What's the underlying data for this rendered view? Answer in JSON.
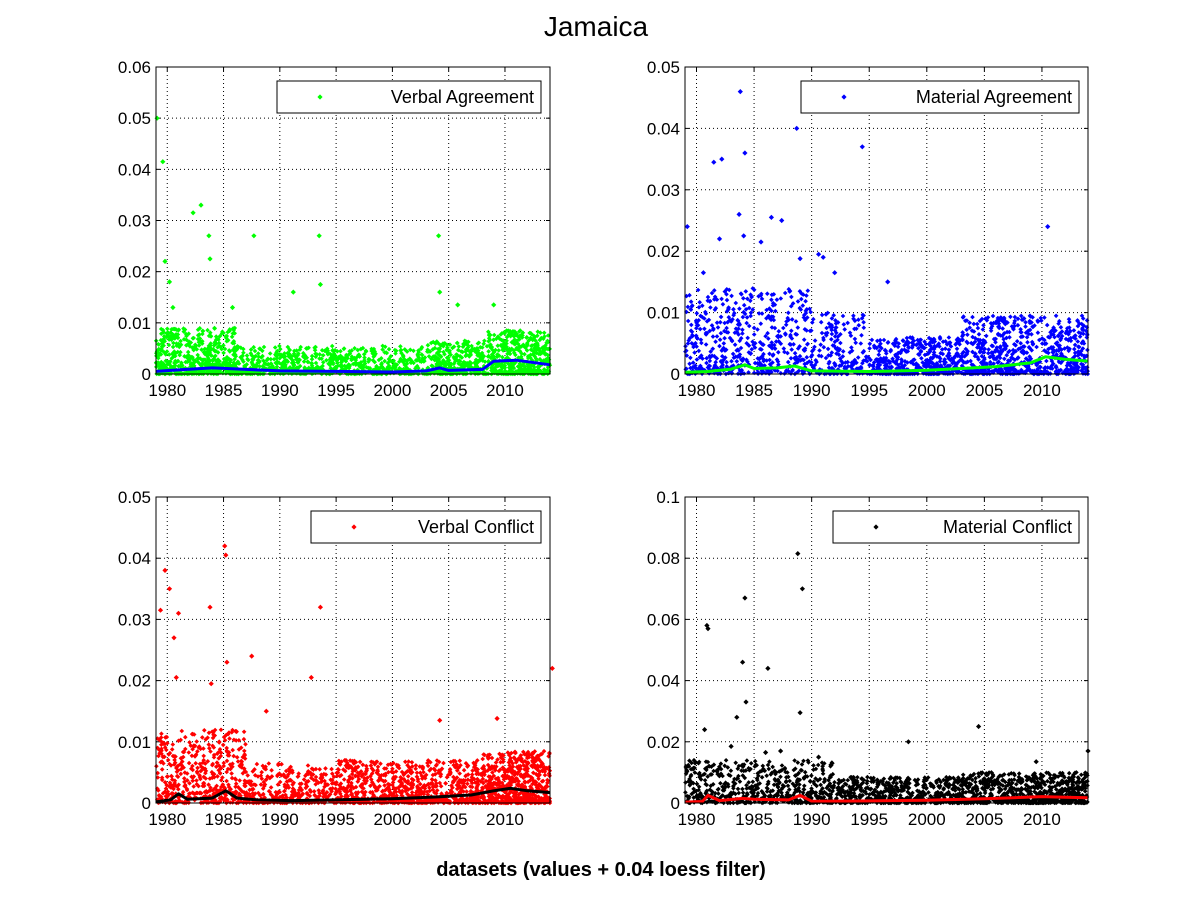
{
  "figure": {
    "title": "Jamaica",
    "xlabel": "datasets (values + 0.04 loess filter)"
  },
  "chart_data": [
    {
      "type": "scatter",
      "legend": "Verbal Agreement",
      "legend_placement": "top-right",
      "point_color": "#00ff00",
      "trend_color": "#0000ff",
      "grid": true,
      "xlim": [
        1979,
        2014
      ],
      "ylim": [
        0,
        0.06
      ],
      "xticks": [
        "1980",
        "1985",
        "1990",
        "1995",
        "2000",
        "2005",
        "2010"
      ],
      "yticks": [
        "0",
        "0.01",
        "0.02",
        "0.03",
        "0.04",
        "0.05",
        "0.06"
      ],
      "outliers": [
        [
          1979.1,
          0.05
        ],
        [
          1979.6,
          0.0415
        ],
        [
          1979.8,
          0.022
        ],
        [
          1980.2,
          0.018
        ],
        [
          1982.3,
          0.0315
        ],
        [
          1983.0,
          0.033
        ],
        [
          1983.7,
          0.027
        ],
        [
          1983.8,
          0.0225
        ],
        [
          1987.7,
          0.027
        ],
        [
          1993.5,
          0.027
        ],
        [
          1993.6,
          0.0175
        ],
        [
          1991.2,
          0.016
        ],
        [
          2004.1,
          0.027
        ],
        [
          2004.2,
          0.016
        ],
        [
          2009.0,
          0.0135
        ],
        [
          1980.5,
          0.013
        ],
        [
          1985.8,
          0.013
        ],
        [
          2005.8,
          0.0135
        ]
      ],
      "point_bands": [
        {
          "from": 1979,
          "to": 1986,
          "max": 0.009,
          "count": 520
        },
        {
          "from": 1986,
          "to": 2003,
          "max": 0.0055,
          "count": 700
        },
        {
          "from": 2003,
          "to": 2008.5,
          "max": 0.0065,
          "count": 320
        },
        {
          "from": 2008.5,
          "to": 2014,
          "max": 0.0085,
          "count": 420
        }
      ],
      "trend": [
        [
          1979,
          0.0005
        ],
        [
          1981,
          0.0008
        ],
        [
          1984,
          0.0012
        ],
        [
          1987,
          0.0009
        ],
        [
          1990,
          0.0006
        ],
        [
          1995,
          0.0005
        ],
        [
          2000,
          0.0004
        ],
        [
          2003,
          0.0006
        ],
        [
          2004.2,
          0.0012
        ],
        [
          2005,
          0.0007
        ],
        [
          2008,
          0.0009
        ],
        [
          2009,
          0.0025
        ],
        [
          2011,
          0.0027
        ],
        [
          2012,
          0.0024
        ],
        [
          2014,
          0.0018
        ]
      ]
    },
    {
      "type": "scatter",
      "legend": "Material Agreement",
      "legend_placement": "top-right",
      "point_color": "#0000ff",
      "trend_color": "#00ff00",
      "grid": true,
      "xlim": [
        1979,
        2014
      ],
      "ylim": [
        0,
        0.05
      ],
      "xticks": [
        "1980",
        "1985",
        "1990",
        "1995",
        "2000",
        "2005",
        "2010"
      ],
      "yticks": [
        "0",
        "0.01",
        "0.02",
        "0.03",
        "0.04",
        "0.05"
      ],
      "outliers": [
        [
          1979.2,
          0.024
        ],
        [
          1981.5,
          0.0345
        ],
        [
          1982.2,
          0.035
        ],
        [
          1983.8,
          0.046
        ],
        [
          1984.2,
          0.036
        ],
        [
          1983.7,
          0.026
        ],
        [
          1986.5,
          0.0255
        ],
        [
          1987.4,
          0.025
        ],
        [
          1988.7,
          0.04
        ],
        [
          1994.4,
          0.037
        ],
        [
          1990.6,
          0.0195
        ],
        [
          1991.0,
          0.019
        ],
        [
          2010.5,
          0.024
        ],
        [
          1982.0,
          0.022
        ],
        [
          1984.1,
          0.0225
        ],
        [
          1985.6,
          0.0215
        ],
        [
          1980.6,
          0.0165
        ],
        [
          1989.0,
          0.0188
        ],
        [
          1992.0,
          0.0165
        ],
        [
          1996.6,
          0.015
        ]
      ],
      "point_bands": [
        {
          "from": 1979,
          "to": 1990,
          "max": 0.014,
          "count": 520
        },
        {
          "from": 1990,
          "to": 1995,
          "max": 0.01,
          "count": 180
        },
        {
          "from": 1995,
          "to": 2003,
          "max": 0.006,
          "count": 420
        },
        {
          "from": 2003,
          "to": 2014,
          "max": 0.0095,
          "count": 700
        }
      ],
      "trend": [
        [
          1979,
          0.0003
        ],
        [
          1981,
          0.0004
        ],
        [
          1983,
          0.0008
        ],
        [
          1984.2,
          0.0015
        ],
        [
          1985,
          0.0009
        ],
        [
          1987,
          0.001
        ],
        [
          1988.5,
          0.0013
        ],
        [
          1990,
          0.0005
        ],
        [
          1995,
          0.0004
        ],
        [
          2000,
          0.0006
        ],
        [
          2003,
          0.0009
        ],
        [
          2006,
          0.0012
        ],
        [
          2009,
          0.0018
        ],
        [
          2010.3,
          0.0028
        ],
        [
          2012,
          0.0024
        ],
        [
          2014,
          0.0021
        ]
      ]
    },
    {
      "type": "scatter",
      "legend": "Verbal Conflict",
      "legend_placement": "top-right",
      "point_color": "#ff0000",
      "trend_color": "#000000",
      "grid": true,
      "xlim": [
        1979,
        2014
      ],
      "ylim": [
        0,
        0.05
      ],
      "xticks": [
        "1980",
        "1985",
        "1990",
        "1995",
        "2000",
        "2005",
        "2010"
      ],
      "yticks": [
        "0",
        "0.01",
        "0.02",
        "0.03",
        "0.04",
        "0.05"
      ],
      "outliers": [
        [
          1979.4,
          0.0315
        ],
        [
          1979.8,
          0.038
        ],
        [
          1980.2,
          0.035
        ],
        [
          1980.6,
          0.027
        ],
        [
          1981.0,
          0.031
        ],
        [
          1983.8,
          0.032
        ],
        [
          1985.1,
          0.042
        ],
        [
          1985.2,
          0.0405
        ],
        [
          1985.3,
          0.023
        ],
        [
          1987.5,
          0.024
        ],
        [
          1993.6,
          0.032
        ],
        [
          1992.8,
          0.0205
        ],
        [
          1983.9,
          0.0195
        ],
        [
          2014.2,
          0.022
        ],
        [
          2009.3,
          0.0138
        ],
        [
          2004.2,
          0.0135
        ],
        [
          1980.8,
          0.0205
        ],
        [
          1988.8,
          0.015
        ]
      ],
      "point_bands": [
        {
          "from": 1979,
          "to": 1987,
          "max": 0.012,
          "count": 480
        },
        {
          "from": 1987,
          "to": 1995,
          "max": 0.0065,
          "count": 320
        },
        {
          "from": 1995,
          "to": 2008,
          "max": 0.007,
          "count": 780
        },
        {
          "from": 2008,
          "to": 2014,
          "max": 0.0085,
          "count": 560
        }
      ],
      "trend": [
        [
          1979,
          0.0002
        ],
        [
          1980.3,
          0.0005
        ],
        [
          1981.0,
          0.0015
        ],
        [
          1981.8,
          0.0006
        ],
        [
          1984.0,
          0.0008
        ],
        [
          1985.2,
          0.002
        ],
        [
          1986.2,
          0.0008
        ],
        [
          1988.0,
          0.0005
        ],
        [
          1991.0,
          0.0004
        ],
        [
          1995,
          0.0005
        ],
        [
          2000,
          0.0007
        ],
        [
          2004,
          0.001
        ],
        [
          2007,
          0.0013
        ],
        [
          2009,
          0.002
        ],
        [
          2010.5,
          0.0024
        ],
        [
          2012,
          0.002
        ],
        [
          2014,
          0.0017
        ]
      ]
    },
    {
      "type": "scatter",
      "legend": "Material Conflict",
      "legend_placement": "top-right",
      "point_color": "#000000",
      "trend_color": "#ff0000",
      "grid": true,
      "xlim": [
        1979,
        2014
      ],
      "ylim": [
        0,
        0.1
      ],
      "xticks": [
        "1980",
        "1985",
        "1990",
        "1995",
        "2000",
        "2005",
        "2010"
      ],
      "yticks": [
        "0",
        "0.02",
        "0.04",
        "0.06",
        "0.08",
        "0.1"
      ],
      "outliers": [
        [
          1980.9,
          0.058
        ],
        [
          1981.0,
          0.057
        ],
        [
          1984.2,
          0.067
        ],
        [
          1984.0,
          0.046
        ],
        [
          1986.2,
          0.044
        ],
        [
          1988.8,
          0.0815
        ],
        [
          1989.2,
          0.07
        ],
        [
          1983.5,
          0.028
        ],
        [
          1984.3,
          0.033
        ],
        [
          1989.0,
          0.0295
        ],
        [
          1979.5,
          0.007
        ],
        [
          1980.7,
          0.024
        ],
        [
          1998.4,
          0.02
        ],
        [
          2004.5,
          0.025
        ],
        [
          2014.0,
          0.017
        ],
        [
          1983.0,
          0.0185
        ],
        [
          1986.0,
          0.0165
        ],
        [
          1987.3,
          0.017
        ],
        [
          1990.6,
          0.015
        ],
        [
          2009.5,
          0.0135
        ]
      ],
      "point_bands": [
        {
          "from": 1979,
          "to": 1992,
          "max": 0.014,
          "count": 560
        },
        {
          "from": 1992,
          "to": 2003,
          "max": 0.0085,
          "count": 520
        },
        {
          "from": 2003,
          "to": 2014,
          "max": 0.01,
          "count": 720
        }
      ],
      "trend": [
        [
          1979,
          0.0003
        ],
        [
          1980.5,
          0.0005
        ],
        [
          1981.0,
          0.0025
        ],
        [
          1982.0,
          0.0008
        ],
        [
          1984.0,
          0.0015
        ],
        [
          1985.0,
          0.0012
        ],
        [
          1988.0,
          0.001
        ],
        [
          1989.0,
          0.0025
        ],
        [
          1990.0,
          0.0006
        ],
        [
          1995,
          0.0007
        ],
        [
          2000,
          0.0009
        ],
        [
          2005,
          0.0014
        ],
        [
          2008,
          0.0018
        ],
        [
          2010,
          0.0021
        ],
        [
          2012,
          0.0019
        ],
        [
          2014,
          0.0017
        ]
      ]
    }
  ]
}
